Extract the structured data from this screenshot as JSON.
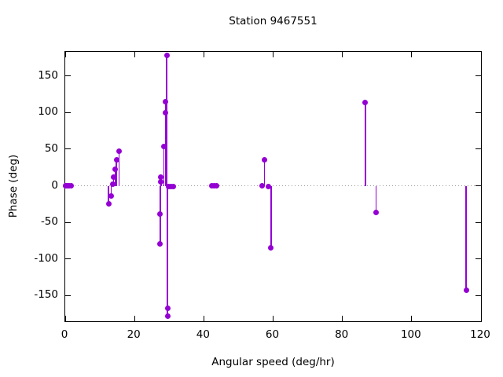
{
  "chart_data": {
    "type": "scatter",
    "style": "impulses+points",
    "title": "Station 9467551",
    "xlabel": "Angular speed (deg/hr)",
    "ylabel": "Phase (deg)",
    "xlim": [
      0,
      120
    ],
    "ylim": [
      -185,
      183
    ],
    "xticks": [
      0,
      20,
      40,
      60,
      80,
      100,
      120
    ],
    "yticks": [
      -150,
      -100,
      -50,
      0,
      50,
      100,
      150
    ],
    "grid": false,
    "zero_line": true,
    "legend": "none",
    "colors": {
      "points": "#9400d3",
      "axis": "#000000",
      "zero_line": "#999999",
      "background": "#ffffff",
      "text": "#000000"
    },
    "series": [
      {
        "name": "phase",
        "color": "#9400d3",
        "points": [
          [
            0.04,
            0
          ],
          [
            0.08,
            0
          ],
          [
            0.54,
            0
          ],
          [
            1.02,
            0
          ],
          [
            1.1,
            0
          ],
          [
            1.64,
            0
          ],
          [
            12.5,
            -25
          ],
          [
            13.3,
            -14
          ],
          [
            13.8,
            2
          ],
          [
            14.0,
            12
          ],
          [
            14.4,
            23
          ],
          [
            14.8,
            35
          ],
          [
            15.5,
            47
          ],
          [
            27.4,
            -79
          ],
          [
            27.4,
            -39
          ],
          [
            27.65,
            5
          ],
          [
            27.65,
            12
          ],
          [
            28.5,
            54
          ],
          [
            28.9,
            115
          ],
          [
            29.0,
            100
          ],
          [
            29.3,
            178
          ],
          [
            29.5,
            -167
          ],
          [
            29.5,
            -178
          ],
          [
            29.9,
            -1
          ],
          [
            30.5,
            -1
          ],
          [
            31.1,
            -1
          ],
          [
            42.2,
            0
          ],
          [
            42.9,
            0
          ],
          [
            43.6,
            0
          ],
          [
            56.9,
            0
          ],
          [
            57.5,
            36
          ],
          [
            58.7,
            -1
          ],
          [
            59.4,
            -85
          ],
          [
            86.6,
            114
          ],
          [
            89.7,
            -36
          ],
          [
            115.7,
            -143
          ]
        ]
      }
    ]
  }
}
